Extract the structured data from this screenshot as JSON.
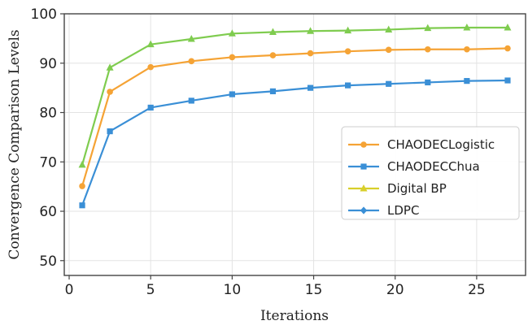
{
  "chart_data": {
    "type": "line",
    "title": "",
    "xlabel": "Iterations",
    "ylabel": "Convergence Comparison Levels",
    "xlim": [
      -0.3,
      28
    ],
    "ylim": [
      47,
      100
    ],
    "xticks": [
      0,
      5,
      10,
      15,
      20,
      25
    ],
    "yticks": [
      50,
      60,
      70,
      80,
      90,
      100
    ],
    "grid": true,
    "legend_position": "center-right",
    "series": [
      {
        "name": "CHAODECLogistic",
        "color": "#f5a335",
        "marker": "circle",
        "x": [
          0.8,
          2.5,
          5,
          7.5,
          10,
          12.5,
          14.8,
          17.1,
          19.6,
          22,
          24.4,
          26.9
        ],
        "y": [
          65.1,
          84.2,
          89.2,
          90.4,
          91.2,
          91.6,
          92.0,
          92.4,
          92.7,
          92.8,
          92.8,
          93.0
        ]
      },
      {
        "name": "CHAODECChua",
        "color": "#3a8fd6",
        "marker": "square",
        "x": [
          0.8,
          2.5,
          5,
          7.5,
          10,
          12.5,
          14.8,
          17.1,
          19.6,
          22,
          24.4,
          26.9
        ],
        "y": [
          61.2,
          76.2,
          81.0,
          82.4,
          83.7,
          84.3,
          85.0,
          85.5,
          85.8,
          86.1,
          86.4,
          86.5
        ]
      },
      {
        "name": "Digital BP",
        "color": "#7fcc4f",
        "marker": "triangle",
        "legend_color": "#d8cf2a",
        "x": [
          0.8,
          2.5,
          5,
          7.5,
          10,
          12.5,
          14.8,
          17.1,
          19.6,
          22,
          24.4,
          26.9
        ],
        "y": [
          69.4,
          89.1,
          93.8,
          94.9,
          96.0,
          96.3,
          96.5,
          96.6,
          96.8,
          97.1,
          97.2,
          97.2
        ]
      },
      {
        "name": "LDPC",
        "color": "#3a8fd6",
        "marker": "diamond",
        "legend_only": true,
        "x": [],
        "y": []
      }
    ]
  }
}
